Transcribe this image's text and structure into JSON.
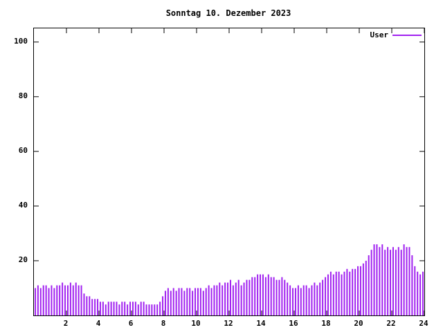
{
  "title": "Sonntag 10. Dezember 2023",
  "legend": {
    "label": "User",
    "color": "#a020f0"
  },
  "axes": {
    "y_ticks": [
      "20",
      "40",
      "60",
      "80",
      "100"
    ],
    "x_ticks": [
      "2",
      "4",
      "6",
      "8",
      "10",
      "12",
      "14",
      "16",
      "18",
      "20",
      "22",
      "24"
    ]
  },
  "chart_data": {
    "type": "bar",
    "title": "Sonntag 10. Dezember 2023",
    "xlabel": "",
    "ylabel": "",
    "xlim": [
      0,
      24
    ],
    "ylim": [
      0,
      105
    ],
    "legend_position": "top-right",
    "grid": false,
    "x_unit": "hour of day",
    "sample_interval_hours": 0.1667,
    "series": [
      {
        "name": "User",
        "color": "#a020f0",
        "values": [
          10,
          11,
          10,
          11,
          11,
          10,
          11,
          10,
          11,
          11,
          12,
          11,
          11,
          12,
          11,
          12,
          11,
          11,
          8,
          7,
          7,
          6,
          6,
          6,
          5,
          5,
          4,
          5,
          5,
          5,
          5,
          4,
          5,
          5,
          4,
          5,
          5,
          5,
          4,
          5,
          5,
          4,
          4,
          4,
          4,
          4,
          5,
          7,
          9,
          10,
          9,
          10,
          9,
          10,
          10,
          9,
          10,
          10,
          9,
          10,
          10,
          10,
          9,
          10,
          11,
          10,
          11,
          11,
          12,
          11,
          12,
          12,
          13,
          11,
          12,
          13,
          11,
          12,
          13,
          13,
          14,
          14,
          15,
          15,
          15,
          14,
          15,
          14,
          14,
          13,
          13,
          14,
          13,
          12,
          11,
          10,
          10,
          11,
          10,
          11,
          11,
          10,
          11,
          12,
          11,
          12,
          13,
          14,
          15,
          16,
          15,
          16,
          16,
          15,
          16,
          17,
          16,
          17,
          17,
          18,
          18,
          19,
          20,
          22,
          24,
          26,
          26,
          25,
          26,
          24,
          25,
          24,
          25,
          24,
          25,
          24,
          26,
          25,
          25,
          22,
          18,
          16,
          15,
          16
        ]
      }
    ]
  }
}
